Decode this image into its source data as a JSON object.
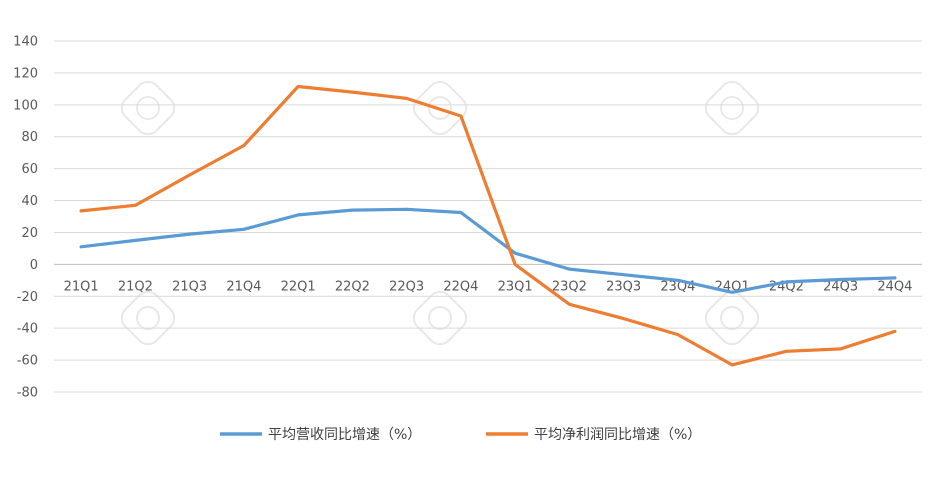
{
  "chart_data": {
    "type": "line",
    "categories": [
      "21Q1",
      "21Q2",
      "21Q3",
      "21Q4",
      "22Q1",
      "22Q2",
      "22Q3",
      "22Q4",
      "23Q1",
      "23Q2",
      "23Q3",
      "23Q4",
      "24Q1",
      "24Q2",
      "24Q3",
      "24Q4"
    ],
    "y_ticks": [
      "140",
      "120",
      "100",
      "80",
      "60",
      "40",
      "20",
      "0",
      "-20",
      "-40",
      "-60",
      "-80"
    ],
    "ylim": [
      -80,
      140
    ],
    "y_step": 20,
    "grid": true,
    "legend_position": "bottom",
    "series": [
      {
        "name": "平均营收同比增速（%）",
        "color": "#5b9bd5",
        "values": [
          11,
          15,
          19,
          22,
          31,
          34,
          34.5,
          32.5,
          7,
          -3,
          -6.5,
          -10,
          -17.5,
          -11,
          -9.5,
          -8.5
        ]
      },
      {
        "name": "平均净利润同比增速（%）",
        "color": "#ed7d31",
        "values": [
          33.5,
          37,
          56,
          74.5,
          111.5,
          108,
          104,
          93,
          0,
          -25,
          -34,
          -44,
          -63,
          -54.5,
          -53,
          -42
        ]
      }
    ]
  }
}
